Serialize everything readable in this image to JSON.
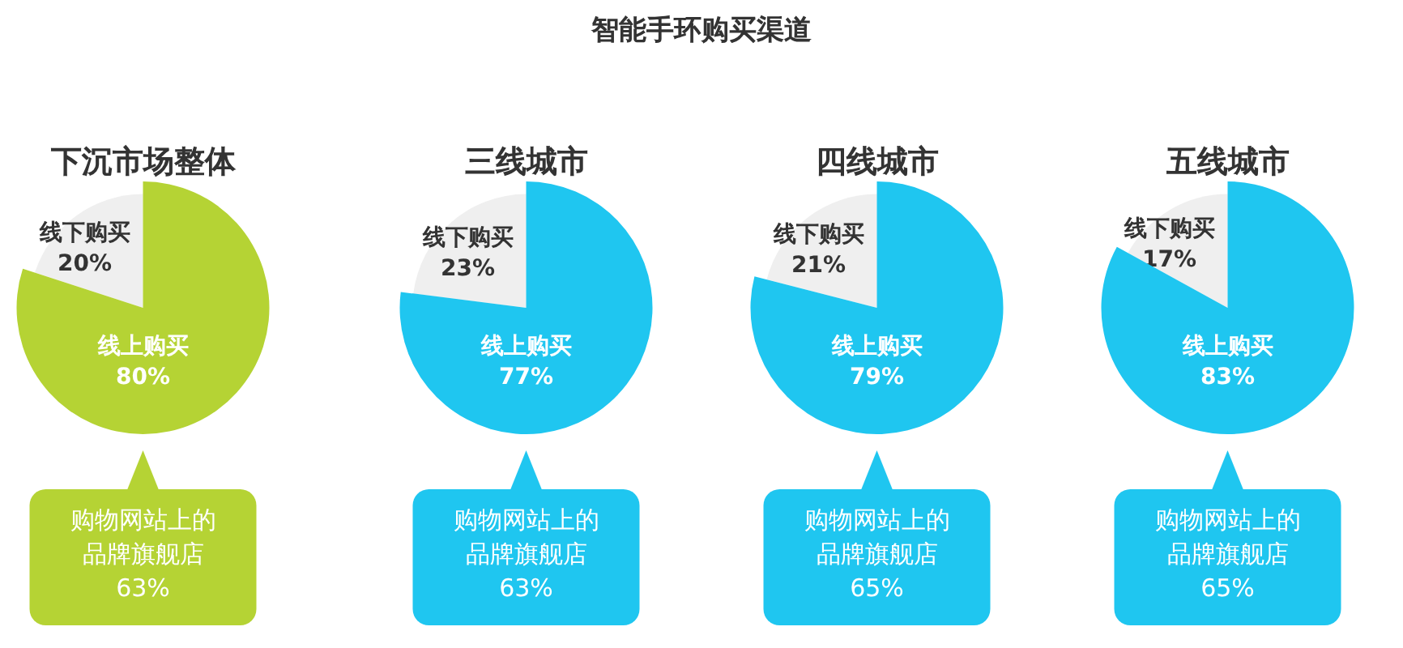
{
  "chart_data": [
    {
      "type": "pie",
      "title": "下沉市场整体",
      "categories": [
        "线下购买",
        "线上购买"
      ],
      "values": [
        20,
        80
      ],
      "value_labels": [
        "20%",
        "80%"
      ],
      "colors": [
        "#efefef",
        "#b5d334"
      ],
      "annotations": [
        "智能手环购买渠道",
        "购物网站上的品牌旗舰店\n63%"
      ]
    },
    {
      "type": "pie",
      "title": "三线城市",
      "categories": [
        "线下购买",
        "线上购买"
      ],
      "values": [
        23,
        77
      ],
      "value_labels": [
        "23%",
        "77%"
      ],
      "colors": [
        "#efefef",
        "#1fc6f0"
      ],
      "annotations": [
        "购物网站上的品牌旗舰店\n63%"
      ]
    },
    {
      "type": "pie",
      "title": "四线城市",
      "categories": [
        "线下购买",
        "线上购买"
      ],
      "values": [
        21,
        79
      ],
      "value_labels": [
        "21%",
        "79%"
      ],
      "colors": [
        "#efefef",
        "#1fc6f0"
      ],
      "annotations": [
        "购物网站上的品牌旗舰店\n65%"
      ]
    },
    {
      "type": "pie",
      "title": "五线城市",
      "categories": [
        "线下购买",
        "线上购买"
      ],
      "values": [
        17,
        83
      ],
      "value_labels": [
        "17%",
        "83%"
      ],
      "colors": [
        "#efefef",
        "#1fc6f0"
      ],
      "annotations": [
        "购物网站上的品牌旗舰店\n65%"
      ]
    }
  ]
}
